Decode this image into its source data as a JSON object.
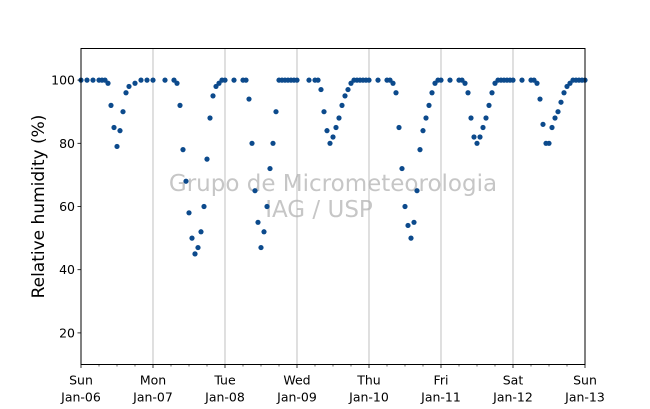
{
  "chart_data": {
    "type": "scatter",
    "title": "",
    "xlabel": "",
    "ylabel": "Relative humidity (%)",
    "xlim": [
      "2013-01-06 00:00",
      "2013-01-13 00:00"
    ],
    "ylim": [
      10,
      110
    ],
    "yticks": [
      20,
      40,
      60,
      80,
      100
    ],
    "xticks": [
      {
        "date": "2013-01-06",
        "line1": "Sun",
        "line2": "Jan-06"
      },
      {
        "date": "2013-01-07",
        "line1": "Mon",
        "line2": "Jan-07"
      },
      {
        "date": "2013-01-08",
        "line1": "Tue",
        "line2": "Jan-08"
      },
      {
        "date": "2013-01-09",
        "line1": "Wed",
        "line2": "Jan-09"
      },
      {
        "date": "2013-01-10",
        "line1": "Thu",
        "line2": "Jan-10"
      },
      {
        "date": "2013-01-11",
        "line1": "Fri",
        "line2": "Jan-11"
      },
      {
        "date": "2013-01-12",
        "line1": "Sat",
        "line2": "Jan-12"
      },
      {
        "date": "2013-01-13",
        "line1": "Sun",
        "line2": "Jan-13"
      }
    ],
    "x_grid": true,
    "y_grid": false,
    "marker_color": "#0c4a8c",
    "series": [
      {
        "x": [
          "2013-01-06 00:00",
          "2013-01-06 02:00",
          "2013-01-06 04:00",
          "2013-01-06 06:00",
          "2013-01-06 07:00",
          "2013-01-06 08:00",
          "2013-01-06 09:00",
          "2013-01-06 10:00",
          "2013-01-06 11:00",
          "2013-01-06 12:00",
          "2013-01-06 13:00",
          "2013-01-06 14:00",
          "2013-01-06 15:00",
          "2013-01-06 16:00",
          "2013-01-06 18:00",
          "2013-01-06 20:00",
          "2013-01-06 22:00",
          "2013-01-07 00:00",
          "2013-01-07 04:00",
          "2013-01-07 07:00",
          "2013-01-07 08:00",
          "2013-01-07 09:00",
          "2013-01-07 10:00",
          "2013-01-07 11:00",
          "2013-01-07 12:00",
          "2013-01-07 13:00",
          "2013-01-07 14:00",
          "2013-01-07 15:00",
          "2013-01-07 16:00",
          "2013-01-07 17:00",
          "2013-01-07 18:00",
          "2013-01-07 19:00",
          "2013-01-07 20:00",
          "2013-01-07 21:00",
          "2013-01-07 22:00",
          "2013-01-07 23:00",
          "2013-01-08 00:00",
          "2013-01-08 03:00",
          "2013-01-08 06:00",
          "2013-01-08 07:00",
          "2013-01-08 08:00",
          "2013-01-08 09:00",
          "2013-01-08 10:00",
          "2013-01-08 11:00",
          "2013-01-08 12:00",
          "2013-01-08 13:00",
          "2013-01-08 14:00",
          "2013-01-08 15:00",
          "2013-01-08 16:00",
          "2013-01-08 17:00",
          "2013-01-08 18:00",
          "2013-01-08 19:00",
          "2013-01-08 20:00",
          "2013-01-08 21:00",
          "2013-01-08 22:00",
          "2013-01-08 23:00",
          "2013-01-09 00:00",
          "2013-01-09 04:00",
          "2013-01-09 06:00",
          "2013-01-09 07:00",
          "2013-01-09 08:00",
          "2013-01-09 09:00",
          "2013-01-09 10:00",
          "2013-01-09 11:00",
          "2013-01-09 12:00",
          "2013-01-09 13:00",
          "2013-01-09 14:00",
          "2013-01-09 15:00",
          "2013-01-09 16:00",
          "2013-01-09 17:00",
          "2013-01-09 18:00",
          "2013-01-09 19:00",
          "2013-01-09 20:00",
          "2013-01-09 21:00",
          "2013-01-09 22:00",
          "2013-01-09 23:00",
          "2013-01-10 00:00",
          "2013-01-10 03:00",
          "2013-01-10 06:00",
          "2013-01-10 07:00",
          "2013-01-10 08:00",
          "2013-01-10 09:00",
          "2013-01-10 10:00",
          "2013-01-10 11:00",
          "2013-01-10 12:00",
          "2013-01-10 13:00",
          "2013-01-10 14:00",
          "2013-01-10 15:00",
          "2013-01-10 16:00",
          "2013-01-10 17:00",
          "2013-01-10 18:00",
          "2013-01-10 19:00",
          "2013-01-10 20:00",
          "2013-01-10 21:00",
          "2013-01-10 22:00",
          "2013-01-10 23:00",
          "2013-01-11 00:00",
          "2013-01-11 03:00",
          "2013-01-11 06:00",
          "2013-01-11 07:00",
          "2013-01-11 08:00",
          "2013-01-11 09:00",
          "2013-01-11 10:00",
          "2013-01-11 11:00",
          "2013-01-11 12:00",
          "2013-01-11 13:00",
          "2013-01-11 14:00",
          "2013-01-11 15:00",
          "2013-01-11 16:00",
          "2013-01-11 17:00",
          "2013-01-11 18:00",
          "2013-01-11 19:00",
          "2013-01-11 20:00",
          "2013-01-11 21:00",
          "2013-01-11 22:00",
          "2013-01-11 23:00",
          "2013-01-12 00:00",
          "2013-01-12 03:00",
          "2013-01-12 06:00",
          "2013-01-12 07:00",
          "2013-01-12 08:00",
          "2013-01-12 09:00",
          "2013-01-12 10:00",
          "2013-01-12 11:00",
          "2013-01-12 12:00",
          "2013-01-12 13:00",
          "2013-01-12 14:00",
          "2013-01-12 15:00",
          "2013-01-12 16:00",
          "2013-01-12 17:00",
          "2013-01-12 18:00",
          "2013-01-12 19:00",
          "2013-01-12 20:00",
          "2013-01-12 21:00",
          "2013-01-12 22:00",
          "2013-01-12 23:00",
          "2013-01-13 00:00"
        ],
        "y": [
          100,
          100,
          100,
          100,
          100,
          100,
          99,
          92,
          85,
          79,
          84,
          90,
          96,
          98,
          99,
          100,
          100,
          100,
          100,
          100,
          99,
          92,
          78,
          68,
          58,
          50,
          45,
          47,
          52,
          60,
          75,
          88,
          95,
          98,
          99,
          100,
          100,
          100,
          100,
          100,
          94,
          80,
          65,
          55,
          47,
          52,
          60,
          72,
          80,
          90,
          100,
          100,
          100,
          100,
          100,
          100,
          100,
          100,
          100,
          100,
          97,
          90,
          84,
          80,
          82,
          85,
          88,
          92,
          95,
          97,
          99,
          100,
          100,
          100,
          100,
          100,
          100,
          100,
          100,
          100,
          99,
          96,
          85,
          72,
          60,
          54,
          50,
          55,
          65,
          78,
          84,
          88,
          92,
          96,
          99,
          100,
          100,
          100,
          100,
          100,
          99,
          96,
          88,
          82,
          80,
          82,
          85,
          88,
          92,
          96,
          99,
          100,
          100,
          100,
          100,
          100,
          100,
          100,
          100,
          100,
          99,
          94,
          86,
          80,
          80,
          85,
          88,
          90,
          93,
          96,
          98,
          99,
          100,
          100,
          100,
          100,
          100
        ]
      }
    ],
    "watermark": [
      "Grupo de Micrometeorologia",
      "IAG / USP"
    ]
  }
}
